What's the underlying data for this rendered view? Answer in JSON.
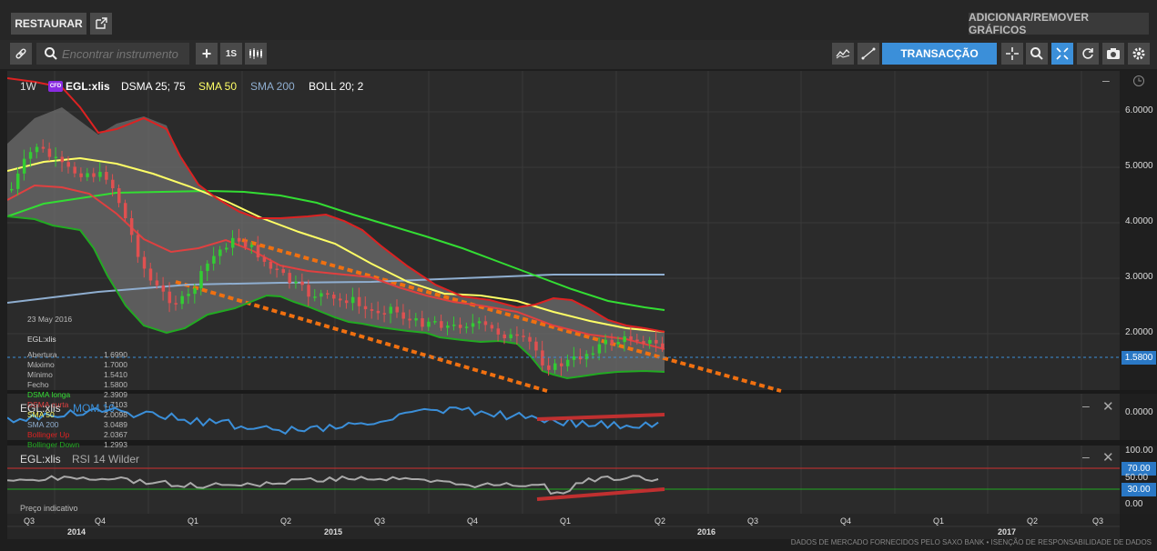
{
  "topbar": {
    "restore_label": "RESTAURAR",
    "add_remove_label": "ADICIONAR/REMOVER GRÁFICOS"
  },
  "toolbar": {
    "search_placeholder": "Encontrar instrumento",
    "period_label": "1S",
    "trade_label": "TRANSACÇÃO"
  },
  "main_panel": {
    "timeframe": "1W",
    "cfd_badge": "CFD",
    "instrument": "EGL:xlis",
    "indicators": [
      {
        "label": "DSMA 25; 75",
        "color": "#ffffff"
      },
      {
        "label": "SMA 50",
        "color": "#ffff66"
      },
      {
        "label": "SMA 200",
        "color": "#8faed0"
      },
      {
        "label": "BOLL 20; 2",
        "color": "#ffffff"
      }
    ],
    "current_price": "1.5800",
    "yaxis_labels": [
      "6.0000",
      "5.0000",
      "4.0000",
      "3.0000",
      "2.0000"
    ]
  },
  "legend": {
    "date": "23 May 2016",
    "instrument": "EGL:xlis",
    "rows": [
      {
        "label": "Abertura",
        "value": "1.6990",
        "color": "#bbbbbb"
      },
      {
        "label": "Máximo",
        "value": "1.7000",
        "color": "#bbbbbb"
      },
      {
        "label": "Mínimo",
        "value": "1.5410",
        "color": "#bbbbbb"
      },
      {
        "label": "Fecho",
        "value": "1.5800",
        "color": "#bbbbbb"
      },
      {
        "label": "DSMA longa",
        "value": "2.3909",
        "color": "#33dd33"
      },
      {
        "label": "DSMA curta",
        "value": "1.7103",
        "color": "#e04040"
      },
      {
        "label": "SMA 50",
        "value": "2.0098",
        "color": "#ffff66"
      },
      {
        "label": "SMA 200",
        "value": "3.0489",
        "color": "#8faed0"
      },
      {
        "label": "Bollinger Up",
        "value": "2.0367",
        "color": "#dd2222"
      },
      {
        "label": "Bollinger Down",
        "value": "1.2993",
        "color": "#22aa22"
      }
    ]
  },
  "mom_panel": {
    "instrument": "EGL:xlis",
    "indicator": "MOM 10",
    "yaxis_label": "0.0000"
  },
  "rsi_panel": {
    "instrument": "EGL:xlis",
    "indicator": "RSI 14 Wilder",
    "yaxis_labels": [
      "100.00",
      "50.00",
      "0.00"
    ],
    "upper_badge": "70.00",
    "lower_badge": "30.00"
  },
  "price_type_label": "Preço indicativo",
  "xaxis": {
    "quarters": [
      "Q3",
      "Q4",
      "Q1",
      "Q2",
      "Q3",
      "Q4",
      "Q1",
      "Q2",
      "Q3",
      "Q4",
      "Q1",
      "Q2",
      "Q3"
    ],
    "years": [
      "2014",
      "2015",
      "2016",
      "2017"
    ]
  },
  "footer": "DADOS DE MERCADO FORNECIDOS PELO SAXO BANK • ISENÇÃO DE RESPONSABILIDADE DE DADOS"
}
